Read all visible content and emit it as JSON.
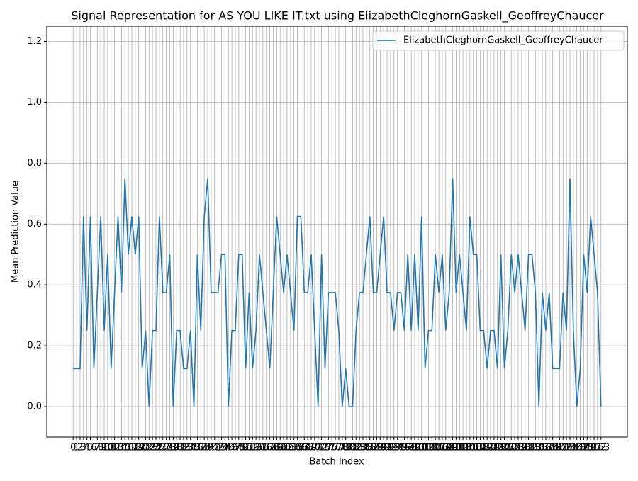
{
  "chart_data": {
    "type": "line",
    "title": "Signal Representation for AS YOU LIKE IT.txt using ElizabethCleghornGaskell_GeoffreyChaucer",
    "xlabel": "Batch Index",
    "ylabel": "Mean Prediction Value",
    "x": [
      0,
      1,
      2,
      3,
      4,
      5,
      6,
      7,
      8,
      9,
      10,
      11,
      12,
      13,
      14,
      15,
      16,
      17,
      18,
      19,
      20,
      21,
      22,
      23,
      24,
      25,
      26,
      27,
      28,
      29,
      30,
      31,
      32,
      33,
      34,
      35,
      36,
      37,
      38,
      39,
      40,
      41,
      42,
      43,
      44,
      45,
      46,
      47,
      48,
      49,
      50,
      51,
      52,
      53,
      54,
      55,
      56,
      57,
      58,
      59,
      60,
      61,
      62,
      63,
      64,
      65,
      66,
      67,
      68,
      69,
      70,
      71,
      72,
      73,
      74,
      75,
      76,
      77,
      78,
      79,
      80,
      81,
      82,
      83,
      84,
      85,
      86,
      87,
      88,
      89,
      90,
      91,
      92,
      93,
      94,
      95,
      96,
      97,
      98,
      99,
      100,
      101,
      102,
      103,
      104,
      105,
      106,
      107,
      108,
      109,
      110,
      111,
      112,
      113,
      114,
      115,
      116,
      117,
      118,
      119,
      120,
      121,
      122,
      123,
      124,
      125,
      126,
      127,
      128,
      129,
      130,
      131,
      132,
      133,
      134,
      135,
      136,
      137,
      138,
      139,
      140,
      141,
      142,
      143,
      144,
      145,
      146,
      147,
      148,
      149,
      150,
      151,
      152,
      153
    ],
    "series": [
      {
        "name": "ElizabethCleghornGaskell_GeoffreyChaucer",
        "color": "#1f77b4",
        "values": [
          0.125,
          0.125,
          0.125,
          0.625,
          0.25,
          0.625,
          0.125,
          0.375,
          0.625,
          0.25,
          0.5,
          0.125,
          0.375,
          0.625,
          0.375,
          0.75,
          0.5,
          0.625,
          0.5,
          0.625,
          0.125,
          0.25,
          0.0,
          0.25,
          0.25,
          0.625,
          0.375,
          0.375,
          0.5,
          0.0,
          0.25,
          0.25,
          0.125,
          0.125,
          0.25,
          0.0,
          0.5,
          0.25,
          0.625,
          0.75,
          0.375,
          0.375,
          0.375,
          0.5,
          0.5,
          0.0,
          0.25,
          0.25,
          0.5,
          0.5,
          0.125,
          0.375,
          0.125,
          0.25,
          0.5,
          0.375,
          0.25,
          0.125,
          0.375,
          0.625,
          0.5,
          0.375,
          0.5,
          0.375,
          0.25,
          0.625,
          0.625,
          0.375,
          0.375,
          0.5,
          0.25,
          0.0,
          0.5,
          0.125,
          0.375,
          0.375,
          0.375,
          0.25,
          0.0,
          0.125,
          0.0,
          0.0,
          0.25,
          0.375,
          0.375,
          0.5,
          0.625,
          0.375,
          0.375,
          0.5,
          0.625,
          0.375,
          0.375,
          0.25,
          0.375,
          0.375,
          0.25,
          0.5,
          0.25,
          0.5,
          0.25,
          0.625,
          0.125,
          0.25,
          0.25,
          0.5,
          0.375,
          0.5,
          0.25,
          0.375,
          0.75,
          0.375,
          0.5,
          0.375,
          0.25,
          0.625,
          0.5,
          0.5,
          0.25,
          0.25,
          0.125,
          0.25,
          0.25,
          0.125,
          0.5,
          0.125,
          0.25,
          0.5,
          0.375,
          0.5,
          0.375,
          0.25,
          0.5,
          0.5,
          0.375,
          0.0,
          0.375,
          0.25,
          0.375,
          0.125,
          0.125,
          0.125,
          0.375,
          0.25,
          0.75,
          0.25,
          0.0,
          0.125,
          0.5,
          0.375,
          0.625,
          0.5,
          0.375,
          0.0
        ]
      }
    ],
    "xlim": [
      -7.65,
      160.65
    ],
    "xticks": [
      0,
      1,
      2,
      3,
      4,
      5,
      6,
      7,
      8,
      9,
      10,
      11,
      12,
      13,
      14,
      15,
      16,
      17,
      18,
      19,
      20,
      21,
      22,
      23,
      24,
      25,
      26,
      27,
      28,
      29,
      30,
      31,
      32,
      33,
      34,
      35,
      36,
      37,
      38,
      39,
      40,
      41,
      42,
      43,
      44,
      45,
      46,
      47,
      48,
      49,
      50,
      51,
      52,
      53,
      54,
      55,
      56,
      57,
      58,
      59,
      60,
      61,
      62,
      63,
      64,
      65,
      66,
      67,
      68,
      69,
      70,
      71,
      72,
      73,
      74,
      75,
      76,
      77,
      78,
      79,
      80,
      81,
      82,
      83,
      84,
      85,
      86,
      87,
      88,
      89,
      90,
      91,
      92,
      93,
      94,
      95,
      96,
      97,
      98,
      99,
      100,
      101,
      102,
      103,
      104,
      105,
      106,
      107,
      108,
      109,
      110,
      111,
      112,
      113,
      114,
      115,
      116,
      117,
      118,
      119,
      120,
      121,
      122,
      123,
      124,
      125,
      126,
      127,
      128,
      129,
      130,
      131,
      132,
      133,
      134,
      135,
      136,
      137,
      138,
      139,
      140,
      141,
      142,
      143,
      144,
      145,
      146,
      147,
      148,
      149,
      150,
      151,
      152,
      153
    ],
    "ylim": [
      -0.1,
      1.25
    ],
    "yticks": [
      {
        "value": 0,
        "label": "0.0"
      },
      0.2,
      0.4,
      0.6,
      0.8,
      {
        "value": 1,
        "label": "1.0"
      },
      1.2
    ],
    "grid": true,
    "legend": "upper right"
  }
}
